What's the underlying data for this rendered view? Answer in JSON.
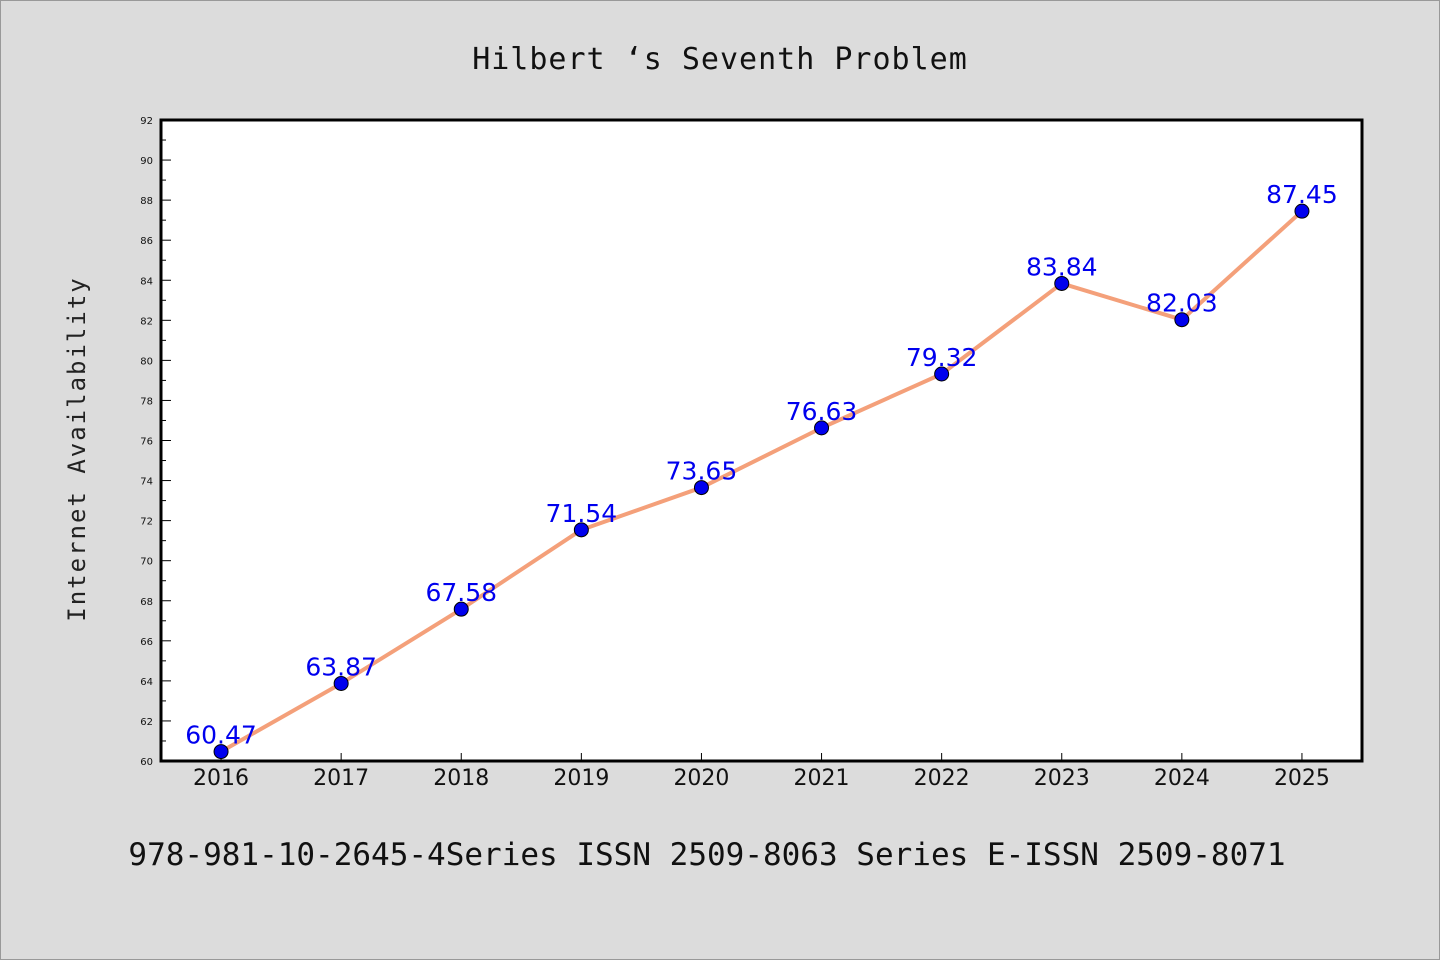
{
  "chart_data": {
    "type": "line",
    "title": "Hilbert ‘s Seventh Problem",
    "ylabel": "Internet Availability",
    "xlabel": "",
    "footer": "978-981-10-2645-4Series ISSN 2509-8063 Series E-ISSN 2509-8071",
    "categories": [
      "2016",
      "2017",
      "2018",
      "2019",
      "2020",
      "2021",
      "2022",
      "2023",
      "2024",
      "2025"
    ],
    "series": [
      {
        "values": [
          60.47,
          63.87,
          67.58,
          71.54,
          73.65,
          76.63,
          79.32,
          83.84,
          82.03,
          87.45
        ],
        "data_labels": [
          "60.47",
          "63.87",
          "67.58",
          "71.54",
          "73.65",
          "76.63",
          "79.32",
          "83.84",
          "82.03",
          "87.45"
        ],
        "line_color": "#f4a07a",
        "marker_color": "#0000ee"
      }
    ],
    "ylim": [
      60,
      92
    ],
    "yticks": [
      "60",
      "62",
      "64",
      "66",
      "68",
      "70",
      "72",
      "74",
      "76",
      "78",
      "80",
      "82",
      "84",
      "86",
      "88",
      "90",
      "92"
    ],
    "grid": false,
    "label_color": "#0000ee",
    "background_color": "#dcdcdc",
    "plot_background_color": "#ffffff"
  }
}
